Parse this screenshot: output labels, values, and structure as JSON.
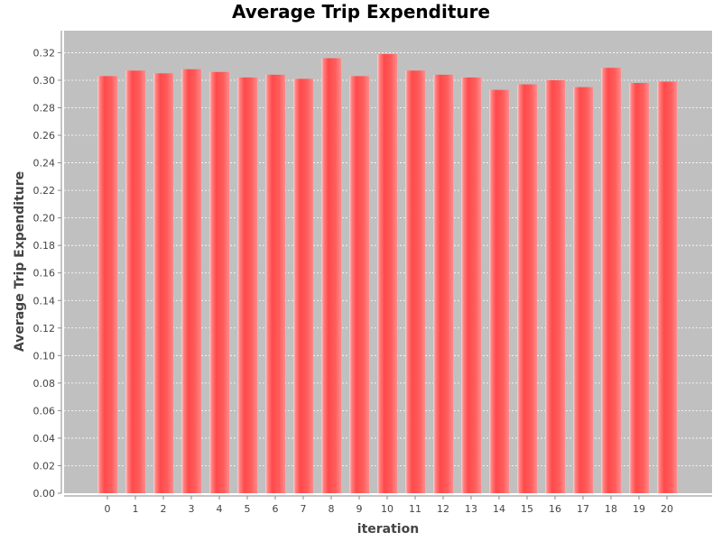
{
  "chart_data": {
    "type": "bar",
    "title": "Average Trip Expenditure",
    "xlabel": "iteration",
    "ylabel": "Average Trip Expenditure",
    "categories": [
      "0",
      "1",
      "2",
      "3",
      "4",
      "5",
      "6",
      "7",
      "8",
      "9",
      "10",
      "11",
      "12",
      "13",
      "14",
      "15",
      "16",
      "17",
      "18",
      "19",
      "20"
    ],
    "values": [
      0.303,
      0.307,
      0.305,
      0.308,
      0.306,
      0.302,
      0.304,
      0.301,
      0.316,
      0.303,
      0.319,
      0.307,
      0.304,
      0.302,
      0.293,
      0.297,
      0.3,
      0.295,
      0.309,
      0.298,
      0.299
    ],
    "ylim": [
      0,
      0.336
    ],
    "yticks": [
      "0.00",
      "0.02",
      "0.04",
      "0.06",
      "0.08",
      "0.10",
      "0.12",
      "0.14",
      "0.16",
      "0.18",
      "0.20",
      "0.22",
      "0.24",
      "0.26",
      "0.28",
      "0.30",
      "0.32"
    ],
    "grid": true,
    "colors": {
      "plot_background": "#c0c0c0",
      "bar": "#ff5555",
      "grid": "#ffffff"
    }
  }
}
